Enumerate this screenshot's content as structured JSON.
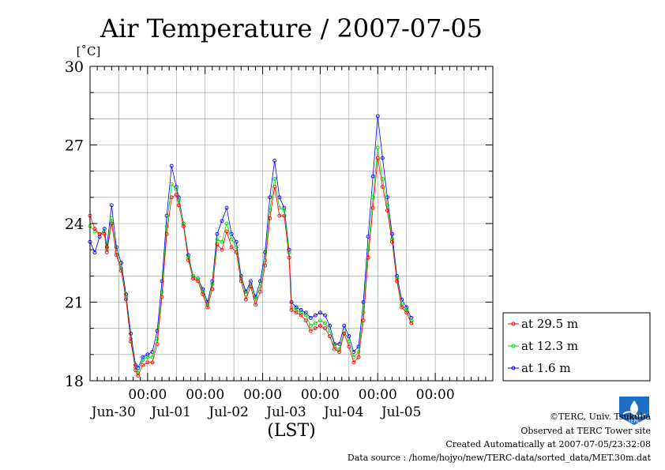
{
  "chart_data": {
    "type": "line",
    "title": "Air Temperature / 2007-07-05",
    "ylabel": "[˚C]",
    "xlabel": "(LST)",
    "ylim": [
      18,
      30
    ],
    "xlim": [
      "2007-06-29 00:00",
      "2007-07-06 00:00"
    ],
    "yticks": [
      "18",
      "21",
      "24",
      "27",
      "30"
    ],
    "xticks": [
      {
        "time": "2007-06-30 00:00",
        "label": "00:00",
        "date": "Jun-30"
      },
      {
        "time": "2007-07-01 00:00",
        "label": "00:00",
        "date": "Jul-01"
      },
      {
        "time": "2007-07-02 00:00",
        "label": "00:00",
        "date": "Jul-02"
      },
      {
        "time": "2007-07-03 00:00",
        "label": "00:00",
        "date": "Jul-03"
      },
      {
        "time": "2007-07-04 00:00",
        "label": "00:00",
        "date": "Jul-04"
      },
      {
        "time": "2007-07-05 00:00",
        "label": "00:00",
        "date": "Jul-05"
      }
    ],
    "grid": true,
    "legend": "right-lower, outside plot",
    "series": [
      {
        "name": "at 29.5 m",
        "color": "#ff0000",
        "marker": "circle",
        "values": [
          [
            "2007-06-29 00:00",
            24.3
          ],
          [
            "2007-06-29 02:00",
            23.8
          ],
          [
            "2007-06-29 04:00",
            23.6
          ],
          [
            "2007-06-29 06:00",
            23.6
          ],
          [
            "2007-06-29 07:00",
            22.9
          ],
          [
            "2007-06-29 09:00",
            24.0
          ],
          [
            "2007-06-29 11:00",
            22.8
          ],
          [
            "2007-06-29 13:00",
            22.2
          ],
          [
            "2007-06-29 15:00",
            21.1
          ],
          [
            "2007-06-29 17:00",
            19.5
          ],
          [
            "2007-06-29 19:00",
            18.4
          ],
          [
            "2007-06-29 20:00",
            18.2
          ],
          [
            "2007-06-29 22:00",
            18.6
          ],
          [
            "2007-06-30 00:00",
            18.7
          ],
          [
            "2007-06-30 02:00",
            18.7
          ],
          [
            "2007-06-30 04:00",
            19.4
          ],
          [
            "2007-06-30 06:00",
            21.2
          ],
          [
            "2007-06-30 08:00",
            23.6
          ],
          [
            "2007-06-30 10:00",
            25.0
          ],
          [
            "2007-06-30 12:00",
            25.1
          ],
          [
            "2007-06-30 13:00",
            24.7
          ],
          [
            "2007-06-30 15:00",
            23.9
          ],
          [
            "2007-06-30 17:00",
            22.6
          ],
          [
            "2007-06-30 19:00",
            21.9
          ],
          [
            "2007-06-30 21:00",
            21.8
          ],
          [
            "2007-06-30 23:00",
            21.3
          ],
          [
            "2007-07-01 01:00",
            20.8
          ],
          [
            "2007-07-01 03:00",
            21.5
          ],
          [
            "2007-07-01 05:00",
            23.2
          ],
          [
            "2007-07-01 07:00",
            23.0
          ],
          [
            "2007-07-01 09:00",
            23.7
          ],
          [
            "2007-07-01 11:00",
            23.1
          ],
          [
            "2007-07-01 13:00",
            22.9
          ],
          [
            "2007-07-01 15:00",
            21.8
          ],
          [
            "2007-07-01 17:00",
            21.1
          ],
          [
            "2007-07-01 19:00",
            21.6
          ],
          [
            "2007-07-01 21:00",
            20.9
          ],
          [
            "2007-07-01 23:00",
            21.4
          ],
          [
            "2007-07-02 01:00",
            22.4
          ],
          [
            "2007-07-02 03:00",
            24.2
          ],
          [
            "2007-07-02 05:00",
            25.4
          ],
          [
            "2007-07-02 07:00",
            24.3
          ],
          [
            "2007-07-02 09:00",
            24.3
          ],
          [
            "2007-07-02 11:00",
            22.7
          ],
          [
            "2007-07-02 12:00",
            20.7
          ],
          [
            "2007-07-02 14:00",
            20.6
          ],
          [
            "2007-07-02 16:00",
            20.5
          ],
          [
            "2007-07-02 18:00",
            20.3
          ],
          [
            "2007-07-02 20:00",
            19.9
          ],
          [
            "2007-07-02 22:00",
            20.0
          ],
          [
            "2007-07-03 00:00",
            20.1
          ],
          [
            "2007-07-03 02:00",
            20.0
          ],
          [
            "2007-07-03 04:00",
            19.7
          ],
          [
            "2007-07-03 06:00",
            19.2
          ],
          [
            "2007-07-03 08:00",
            19.1
          ],
          [
            "2007-07-03 10:00",
            19.8
          ],
          [
            "2007-07-03 12:00",
            19.3
          ],
          [
            "2007-07-03 14:00",
            18.7
          ],
          [
            "2007-07-03 16:00",
            18.9
          ],
          [
            "2007-07-03 18:00",
            20.3
          ],
          [
            "2007-07-03 20:00",
            22.7
          ],
          [
            "2007-07-03 22:00",
            24.6
          ],
          [
            "2007-07-04 00:00",
            26.5
          ],
          [
            "2007-07-04 02:00",
            25.4
          ],
          [
            "2007-07-04 04:00",
            24.5
          ],
          [
            "2007-07-04 06:00",
            23.3
          ],
          [
            "2007-07-04 08:00",
            21.8
          ],
          [
            "2007-07-04 10:00",
            20.8
          ],
          [
            "2007-07-04 12:00",
            20.6
          ],
          [
            "2007-07-04 14:00",
            20.2
          ]
        ]
      },
      {
        "name": "at 12.3 m",
        "color": "#00dd00",
        "marker": "circle",
        "values": [
          [
            "2007-06-29 00:00",
            23.9
          ],
          [
            "2007-06-29 02:00",
            23.7
          ],
          [
            "2007-06-29 04:00",
            23.6
          ],
          [
            "2007-06-29 06:00",
            23.7
          ],
          [
            "2007-06-29 07:00",
            23.0
          ],
          [
            "2007-06-29 09:00",
            24.2
          ],
          [
            "2007-06-29 11:00",
            22.9
          ],
          [
            "2007-06-29 13:00",
            22.3
          ],
          [
            "2007-06-29 15:00",
            21.2
          ],
          [
            "2007-06-29 17:00",
            19.6
          ],
          [
            "2007-06-29 19:00",
            18.5
          ],
          [
            "2007-06-29 20:00",
            18.3
          ],
          [
            "2007-06-29 22:00",
            18.8
          ],
          [
            "2007-06-30 00:00",
            18.9
          ],
          [
            "2007-06-30 02:00",
            18.9
          ],
          [
            "2007-06-30 04:00",
            19.6
          ],
          [
            "2007-06-30 06:00",
            21.4
          ],
          [
            "2007-06-30 08:00",
            23.9
          ],
          [
            "2007-06-30 10:00",
            25.5
          ],
          [
            "2007-06-30 12:00",
            25.3
          ],
          [
            "2007-06-30 13:00",
            24.9
          ],
          [
            "2007-06-30 15:00",
            24.0
          ],
          [
            "2007-06-30 17:00",
            22.7
          ],
          [
            "2007-06-30 19:00",
            22.0
          ],
          [
            "2007-06-30 21:00",
            21.9
          ],
          [
            "2007-06-30 23:00",
            21.4
          ],
          [
            "2007-07-01 01:00",
            20.9
          ],
          [
            "2007-07-01 03:00",
            21.7
          ],
          [
            "2007-07-01 05:00",
            23.4
          ],
          [
            "2007-07-01 07:00",
            23.3
          ],
          [
            "2007-07-01 09:00",
            24.0
          ],
          [
            "2007-07-01 11:00",
            23.4
          ],
          [
            "2007-07-01 13:00",
            23.1
          ],
          [
            "2007-07-01 15:00",
            21.9
          ],
          [
            "2007-07-01 17:00",
            21.3
          ],
          [
            "2007-07-01 19:00",
            21.7
          ],
          [
            "2007-07-01 21:00",
            21.1
          ],
          [
            "2007-07-01 23:00",
            21.6
          ],
          [
            "2007-07-02 01:00",
            22.6
          ],
          [
            "2007-07-02 03:00",
            24.5
          ],
          [
            "2007-07-02 05:00",
            25.7
          ],
          [
            "2007-07-02 07:00",
            24.6
          ],
          [
            "2007-07-02 09:00",
            24.5
          ],
          [
            "2007-07-02 11:00",
            22.9
          ],
          [
            "2007-07-02 12:00",
            20.8
          ],
          [
            "2007-07-02 14:00",
            20.7
          ],
          [
            "2007-07-02 16:00",
            20.6
          ],
          [
            "2007-07-02 18:00",
            20.5
          ],
          [
            "2007-07-02 20:00",
            20.1
          ],
          [
            "2007-07-02 22:00",
            20.2
          ],
          [
            "2007-07-03 00:00",
            20.3
          ],
          [
            "2007-07-03 02:00",
            20.2
          ],
          [
            "2007-07-03 04:00",
            19.9
          ],
          [
            "2007-07-03 06:00",
            19.3
          ],
          [
            "2007-07-03 08:00",
            19.2
          ],
          [
            "2007-07-03 10:00",
            19.9
          ],
          [
            "2007-07-03 12:00",
            19.5
          ],
          [
            "2007-07-03 14:00",
            18.9
          ],
          [
            "2007-07-03 16:00",
            19.1
          ],
          [
            "2007-07-03 18:00",
            20.6
          ],
          [
            "2007-07-03 20:00",
            23.0
          ],
          [
            "2007-07-03 22:00",
            25.0
          ],
          [
            "2007-07-04 00:00",
            26.9
          ],
          [
            "2007-07-04 02:00",
            25.7
          ],
          [
            "2007-07-04 04:00",
            24.7
          ],
          [
            "2007-07-04 06:00",
            23.4
          ],
          [
            "2007-07-04 08:00",
            21.9
          ],
          [
            "2007-07-04 10:00",
            20.9
          ],
          [
            "2007-07-04 12:00",
            20.7
          ],
          [
            "2007-07-04 14:00",
            20.3
          ]
        ]
      },
      {
        "name": "at 1.6 m",
        "color": "#0000ff",
        "marker": "circle",
        "values": [
          [
            "2007-06-29 00:00",
            23.3
          ],
          [
            "2007-06-29 02:00",
            22.9
          ],
          [
            "2007-06-29 04:00",
            23.5
          ],
          [
            "2007-06-29 06:00",
            23.8
          ],
          [
            "2007-06-29 07:00",
            23.1
          ],
          [
            "2007-06-29 09:00",
            24.7
          ],
          [
            "2007-06-29 11:00",
            23.1
          ],
          [
            "2007-06-29 13:00",
            22.5
          ],
          [
            "2007-06-29 15:00",
            21.3
          ],
          [
            "2007-06-29 17:00",
            19.8
          ],
          [
            "2007-06-29 19:00",
            18.6
          ],
          [
            "2007-06-29 20:00",
            18.5
          ],
          [
            "2007-06-29 22:00",
            18.9
          ],
          [
            "2007-06-30 00:00",
            19.0
          ],
          [
            "2007-06-30 02:00",
            19.1
          ],
          [
            "2007-06-30 04:00",
            19.9
          ],
          [
            "2007-06-30 06:00",
            21.8
          ],
          [
            "2007-06-30 08:00",
            24.3
          ],
          [
            "2007-06-30 10:00",
            26.2
          ],
          [
            "2007-06-30 12:00",
            25.4
          ],
          [
            "2007-06-30 13:00",
            25.0
          ],
          [
            "2007-06-30 15:00",
            24.0
          ],
          [
            "2007-06-30 17:00",
            22.8
          ],
          [
            "2007-06-30 19:00",
            22.0
          ],
          [
            "2007-06-30 21:00",
            21.9
          ],
          [
            "2007-06-30 23:00",
            21.5
          ],
          [
            "2007-07-01 01:00",
            21.0
          ],
          [
            "2007-07-01 03:00",
            21.8
          ],
          [
            "2007-07-01 05:00",
            23.6
          ],
          [
            "2007-07-01 07:00",
            24.1
          ],
          [
            "2007-07-01 09:00",
            24.6
          ],
          [
            "2007-07-01 11:00",
            23.6
          ],
          [
            "2007-07-01 13:00",
            23.3
          ],
          [
            "2007-07-01 15:00",
            22.0
          ],
          [
            "2007-07-01 17:00",
            21.4
          ],
          [
            "2007-07-01 19:00",
            21.8
          ],
          [
            "2007-07-01 21:00",
            21.2
          ],
          [
            "2007-07-01 23:00",
            21.8
          ],
          [
            "2007-07-02 01:00",
            22.9
          ],
          [
            "2007-07-02 03:00",
            25.0
          ],
          [
            "2007-07-02 05:00",
            26.4
          ],
          [
            "2007-07-02 07:00",
            25.0
          ],
          [
            "2007-07-02 09:00",
            24.6
          ],
          [
            "2007-07-02 11:00",
            23.0
          ],
          [
            "2007-07-02 12:00",
            21.0
          ],
          [
            "2007-07-02 14:00",
            20.8
          ],
          [
            "2007-07-02 16:00",
            20.7
          ],
          [
            "2007-07-02 18:00",
            20.6
          ],
          [
            "2007-07-02 20:00",
            20.4
          ],
          [
            "2007-07-02 22:00",
            20.5
          ],
          [
            "2007-07-03 00:00",
            20.6
          ],
          [
            "2007-07-03 02:00",
            20.5
          ],
          [
            "2007-07-03 04:00",
            20.1
          ],
          [
            "2007-07-03 06:00",
            19.4
          ],
          [
            "2007-07-03 08:00",
            19.4
          ],
          [
            "2007-07-03 10:00",
            20.1
          ],
          [
            "2007-07-03 12:00",
            19.7
          ],
          [
            "2007-07-03 14:00",
            19.1
          ],
          [
            "2007-07-03 16:00",
            19.3
          ],
          [
            "2007-07-03 18:00",
            21.0
          ],
          [
            "2007-07-03 20:00",
            23.5
          ],
          [
            "2007-07-03 22:00",
            25.8
          ],
          [
            "2007-07-04 00:00",
            28.1
          ],
          [
            "2007-07-04 02:00",
            26.5
          ],
          [
            "2007-07-04 04:00",
            25.0
          ],
          [
            "2007-07-04 06:00",
            23.6
          ],
          [
            "2007-07-04 08:00",
            22.0
          ],
          [
            "2007-07-04 10:00",
            21.1
          ],
          [
            "2007-07-04 12:00",
            20.8
          ],
          [
            "2007-07-04 14:00",
            20.4
          ]
        ]
      }
    ]
  },
  "footer": {
    "copyright": "©TERC, Univ. Tsukuba",
    "observed": "Observed at TERC Tower site",
    "created": "Created Automatically at 2007-07-05/23:32:08",
    "source": "Data source : /home/hojyo/new/TERC-data/sorted_data/MET.30m.dat"
  },
  "logo": {
    "text": "TERC",
    "color": "#1e6fc8"
  }
}
